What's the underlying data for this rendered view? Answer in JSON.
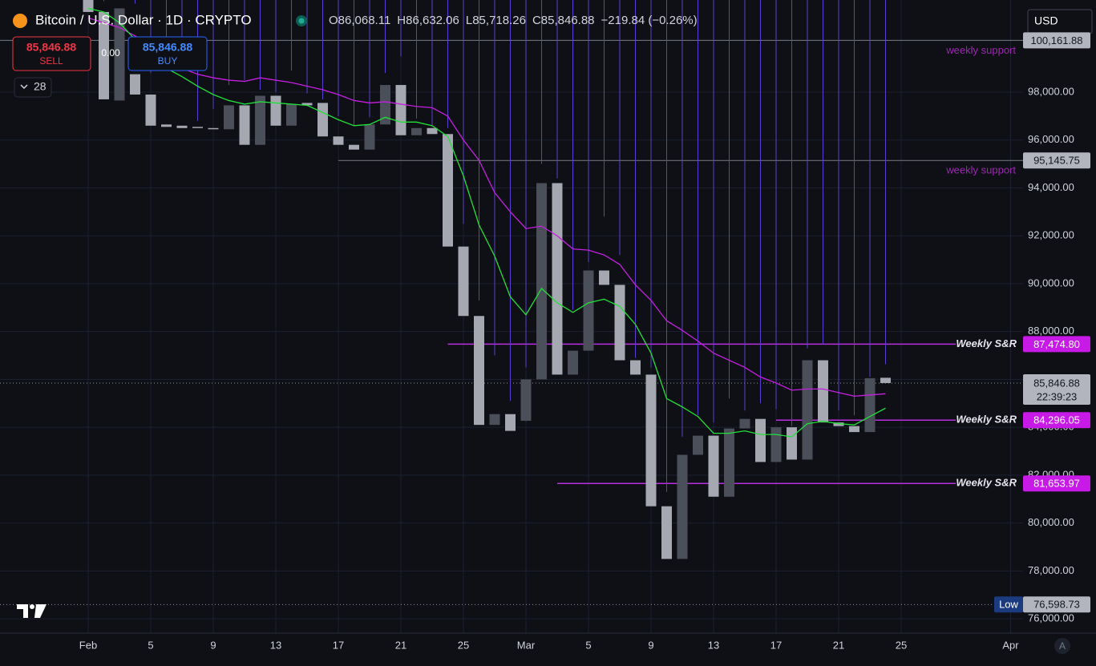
{
  "chart_data": {
    "type": "candlestick",
    "title": "Bitcoin / U.S. Dollar · 1D · CRYPTO",
    "header_values": [
      "O86,068.11",
      "H86,632.06",
      "L85,718.26",
      "C85,846.88",
      "−219.84 (−0.26%)"
    ],
    "categories": [
      "Feb",
      null,
      null,
      null,
      "5",
      null,
      null,
      null,
      "9",
      null,
      null,
      null,
      "13",
      null,
      null,
      null,
      "17",
      null,
      null,
      null,
      "21",
      null,
      null,
      null,
      "25",
      null,
      null,
      null,
      "Mar",
      null,
      null,
      null,
      "5",
      null,
      null,
      null,
      "9",
      null,
      null,
      null,
      "13",
      null,
      null,
      null,
      "17",
      null,
      null,
      null,
      "21",
      null,
      null,
      null,
      "25",
      null,
      null,
      null,
      null,
      null,
      null,
      "Apr"
    ],
    "open": [
      102400,
      101350,
      97650,
      98750,
      97900,
      96650,
      96600,
      96550,
      96500,
      96450,
      97450,
      95800,
      97850,
      96600,
      97550,
      97550,
      96150,
      95800,
      95600,
      96650,
      98300,
      96200,
      96500,
      96250,
      91550,
      88650,
      84100,
      84550,
      84270,
      86000,
      94200,
      86200,
      87200,
      90550,
      89950,
      86800,
      86200,
      80700,
      78500,
      82850,
      83650,
      81100,
      83950,
      84350,
      82550,
      84000,
      82650,
      86800,
      84200,
      84050,
      83800,
      86068.11,
      null,
      null,
      null,
      null,
      null,
      null,
      null,
      null
    ],
    "high": [
      102800,
      101800,
      102500,
      101700,
      98800,
      99000,
      100100,
      96800,
      97300,
      98300,
      98500,
      98100,
      98000,
      98900,
      97950,
      97700,
      97000,
      96600,
      96950,
      98800,
      99500,
      96900,
      96600,
      96500,
      92500,
      89300,
      87000,
      85100,
      86500,
      95000,
      94400,
      88900,
      90900,
      92800,
      91200,
      86900,
      86500,
      81300,
      83600,
      84500,
      84200,
      85200,
      84700,
      85000,
      84750,
      84050,
      87300,
      87450,
      84700,
      84500,
      86100,
      86632.06,
      null,
      null,
      null,
      null,
      null,
      null,
      null,
      null
    ],
    "low": {
      "label": "Low",
      "value": 76598.73,
      "value_label": "76,598.73"
    },
    "close": [
      101350,
      97700,
      101500,
      97900,
      96600,
      96550,
      96500,
      96500,
      96450,
      97450,
      95800,
      97850,
      96600,
      97500,
      97450,
      96150,
      95800,
      95600,
      96650,
      98300,
      96200,
      96500,
      96250,
      91550,
      88650,
      84100,
      84550,
      83850,
      86000,
      94200,
      86200,
      87200,
      90550,
      89950,
      86800,
      86200,
      80700,
      78500,
      82850,
      83650,
      81100,
      83950,
      84350,
      82550,
      84000,
      82650,
      86800,
      84200,
      84050,
      83800,
      86050,
      85846.88,
      null,
      null,
      null,
      null,
      null,
      null,
      null,
      null
    ],
    "up_color": "#4b4f59",
    "down_color": "#a5a8b0",
    "wick_color": "#5b3fd1",
    "series": [
      {
        "color": "#c51fe0",
        "values": [
          101100,
          100900,
          100700,
          100350,
          100000,
          99350,
          99000,
          98750,
          98600,
          98500,
          98450,
          98600,
          98500,
          98400,
          98250,
          98100,
          97900,
          97650,
          97550,
          97600,
          97500,
          97400,
          97350,
          97000,
          96000,
          95150,
          93800,
          93000,
          92300,
          92400,
          92000,
          91450,
          91400,
          91200,
          90800,
          89950,
          89300,
          88450,
          88050,
          87600,
          87100,
          86800,
          86500,
          86100,
          85850,
          85550,
          85600,
          85600,
          85450,
          85300,
          85350,
          85400,
          null,
          null,
          null,
          null,
          null,
          null,
          null,
          null
        ]
      },
      {
        "color": "#22e03a",
        "values": [
          101500,
          101350,
          100900,
          100200,
          99700,
          99000,
          98650,
          98250,
          97900,
          97650,
          97500,
          97600,
          97550,
          97500,
          97450,
          97150,
          96850,
          96600,
          96650,
          96950,
          96750,
          96750,
          96600,
          96150,
          94500,
          92450,
          91150,
          89450,
          88700,
          89800,
          89200,
          88800,
          89200,
          89350,
          89050,
          88300,
          87100,
          85200,
          84850,
          84450,
          83750,
          83750,
          83850,
          83700,
          83700,
          83600,
          84150,
          84250,
          84150,
          84100,
          84450,
          84800,
          null,
          null,
          null,
          null,
          null,
          null,
          null,
          null
        ]
      }
    ],
    "supports": [
      {
        "label": "weekly support",
        "value": 100161.88,
        "value_label": "100,161.88"
      },
      {
        "label": "weekly support",
        "value": 95145.75,
        "value_label": "95,145.75"
      }
    ],
    "support_color": "#9c27b0",
    "sr_levels": [
      {
        "label": "Weekly S&R",
        "value": 87474.8,
        "value_label": "87,474.80"
      },
      {
        "label": "Weekly S&R",
        "value": 84296.05,
        "value_label": "84,296.05"
      },
      {
        "label": "Weekly S&R",
        "value": 81653.97,
        "value_label": "81,653.97"
      }
    ],
    "sr_color": "#b82ee0",
    "current_price": {
      "value": 85846.88,
      "label": "85,846.88",
      "countdown": "22:39:23"
    },
    "ylim": [
      75400,
      101850
    ],
    "yticks": [
      {
        "value": 76000,
        "label": "76,000.00"
      },
      {
        "value": 78000,
        "label": "78,000.00"
      },
      {
        "value": 80000,
        "label": "80,000.00"
      },
      {
        "value": 82000,
        "label": "82,000.00"
      },
      {
        "value": 84000,
        "label": "84,000.00"
      },
      {
        "value": 86000,
        "label": "86,000.00"
      },
      {
        "value": 88000,
        "label": "88,000.00"
      },
      {
        "value": 90000,
        "label": "90,000.00"
      },
      {
        "value": 92000,
        "label": "92,000.00"
      },
      {
        "value": 94000,
        "label": "94,000.00"
      },
      {
        "value": 96000,
        "label": "96,000.00"
      },
      {
        "value": 98000,
        "label": "98,000.00"
      }
    ],
    "grid": true
  },
  "ui": {
    "sell_price": "85,846.88",
    "sell": "SELL",
    "spread": "0.00",
    "buy_price": "85,846.88",
    "buy": "BUY",
    "indicators": "28",
    "currency": "USD",
    "scale_mode": "A"
  }
}
